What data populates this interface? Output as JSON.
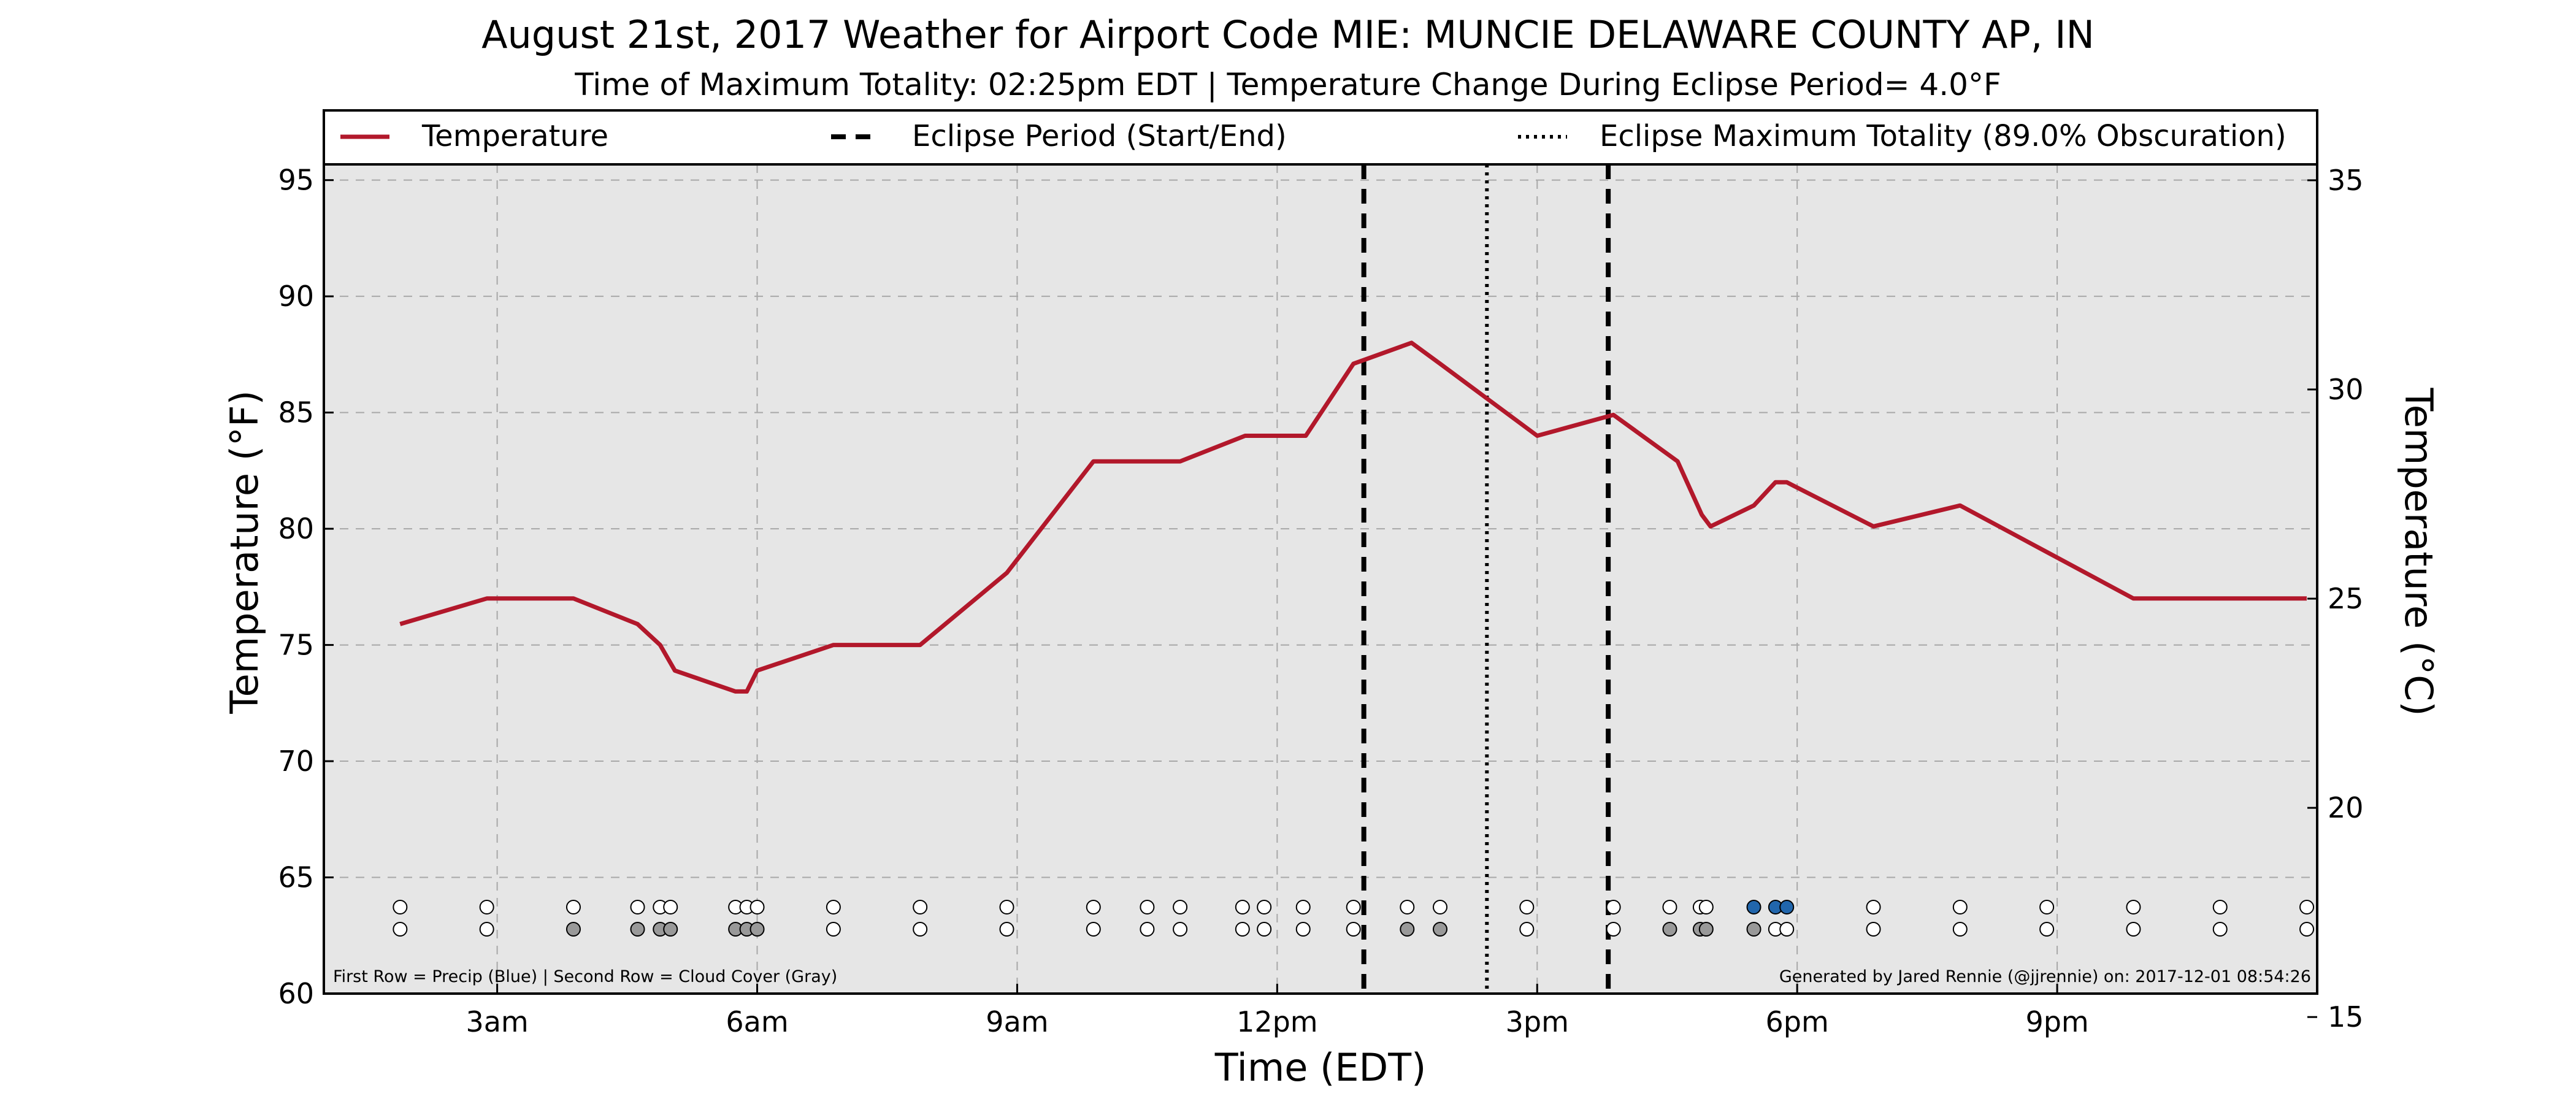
{
  "title": "August 21st, 2017 Weather for Airport Code MIE: MUNCIE DELAWARE COUNTY AP, IN",
  "subtitle": "Time of Maximum Totality: 02:25pm EDT | Temperature Change During Eclipse Period= 4.0°F",
  "footnote_left": "First Row = Precip (Blue) | Second Row = Cloud Cover (Gray)",
  "footnote_right": "Generated by Jared Rennie (@jjrennie) on: 2017-12-01 08:54:26",
  "colors": {
    "temperature_line": "#b2182b",
    "plot_background": "#e6e6e6",
    "precip_marker": "#2166ac",
    "cloud_marker": "#999999",
    "empty_marker": "#ffffff",
    "grid": "#a8a8a8"
  },
  "chart_data": {
    "type": "line",
    "xlabel": "Time (EDT)",
    "ylabel": "Temperature (°F)",
    "ylabel_right": "Temperature (°C)",
    "x_unit": "hours since midnight EDT",
    "xlim": [
      1.0,
      24.0
    ],
    "ylim": [
      60,
      98
    ],
    "ylim_right": [
      15.56,
      36.67
    ],
    "grid": true,
    "legend_placement": "top, full width",
    "x_ticks": [
      {
        "x": 3,
        "label": "3am"
      },
      {
        "x": 6,
        "label": "6am"
      },
      {
        "x": 9,
        "label": "9am"
      },
      {
        "x": 12,
        "label": "12pm"
      },
      {
        "x": 15,
        "label": "3pm"
      },
      {
        "x": 18,
        "label": "6pm"
      },
      {
        "x": 21,
        "label": "9pm"
      }
    ],
    "y_ticks": [
      60,
      65,
      70,
      75,
      80,
      85,
      90,
      95
    ],
    "y_ticks_right": [
      15,
      20,
      25,
      30,
      35
    ],
    "legend": [
      {
        "label": "Temperature",
        "style": "solid"
      },
      {
        "label": "Eclipse Period (Start/End)",
        "style": "dashed"
      },
      {
        "label": "Eclipse Maximum Totality (89.0% Obscuration)",
        "style": "dotted"
      }
    ],
    "series": [
      {
        "name": "Temperature",
        "x": [
          1.88,
          2.88,
          3.88,
          4.62,
          4.88,
          5.05,
          5.75,
          5.88,
          6.0,
          6.88,
          7.88,
          8.88,
          9.88,
          10.88,
          11.63,
          12.33,
          12.88,
          13.55,
          13.88,
          15.0,
          15.88,
          16.62,
          16.9,
          17.0,
          17.5,
          17.75,
          17.88,
          18.88,
          19.88,
          20.88,
          21.88,
          22.88,
          23.88
        ],
        "y": [
          75.9,
          77,
          77,
          75.9,
          75,
          73.9,
          73,
          73,
          73.9,
          75,
          75,
          78.1,
          82.9,
          82.9,
          84,
          84,
          87.1,
          88,
          87.1,
          84,
          84.9,
          82.9,
          80.6,
          80.1,
          81,
          82,
          82,
          80.1,
          81,
          79,
          77,
          77,
          77
        ]
      }
    ],
    "eclipse_start": 13.0,
    "eclipse_max": 14.42,
    "eclipse_end": 15.82,
    "observation_times": [
      1.88,
      2.88,
      3.88,
      4.62,
      4.88,
      5.0,
      5.75,
      5.88,
      6.0,
      6.88,
      7.88,
      8.88,
      9.88,
      10.5,
      10.88,
      11.6,
      11.85,
      12.3,
      12.88,
      13.5,
      13.88,
      14.88,
      15.88,
      16.53,
      16.88,
      16.95,
      17.5,
      17.75,
      17.88,
      18.88,
      19.88,
      20.88,
      21.88,
      22.88,
      23.88
    ],
    "precip_row": [
      0,
      0,
      0,
      0,
      0,
      0,
      0,
      0,
      0,
      0,
      0,
      0,
      0,
      0,
      0,
      0,
      0,
      0,
      0,
      0,
      0,
      0,
      0,
      0,
      0,
      0,
      1,
      1,
      1,
      0,
      0,
      0,
      0,
      0,
      0
    ],
    "cloud_row": [
      0,
      0,
      1,
      1,
      1,
      1,
      1,
      1,
      1,
      0,
      0,
      0,
      0,
      0,
      0,
      0,
      0,
      0,
      0,
      1,
      1,
      0,
      0,
      1,
      1,
      1,
      1,
      0,
      0,
      0,
      0,
      0,
      0,
      0,
      0
    ]
  }
}
